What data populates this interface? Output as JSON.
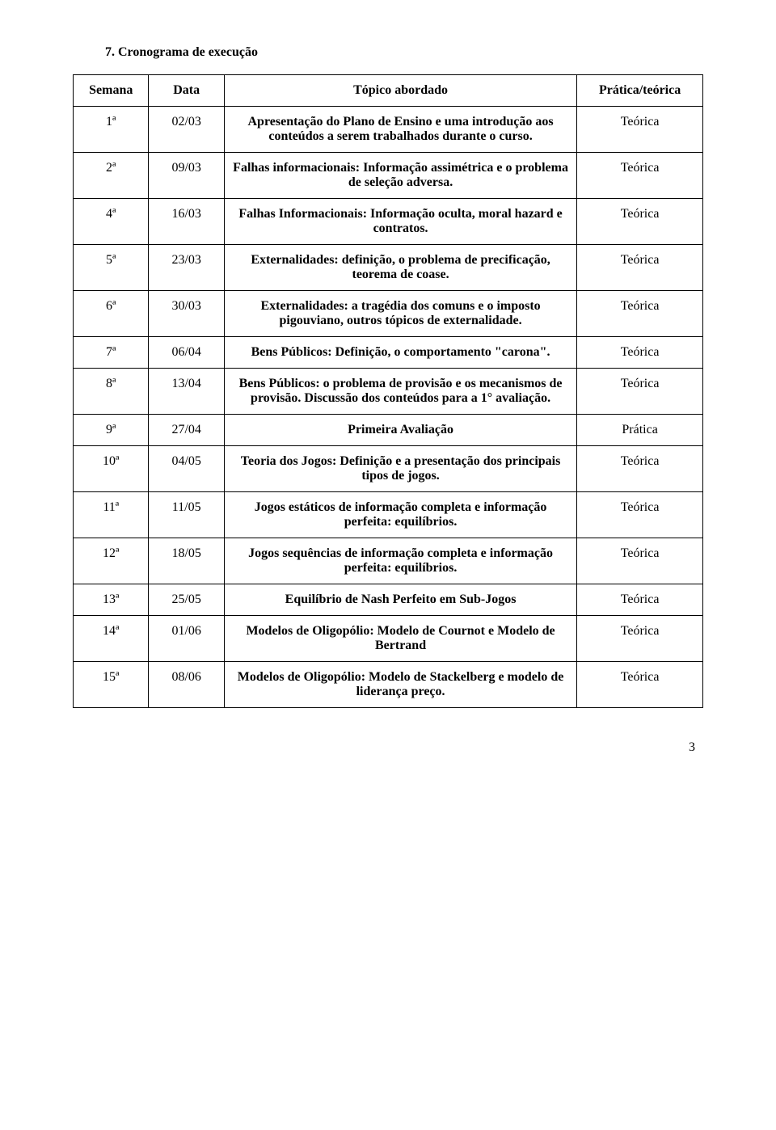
{
  "heading": "7. Cronograma de execução",
  "columns": [
    "Semana",
    "Data",
    "Tópico abordado",
    "Prática/teórica"
  ],
  "rows": [
    {
      "semana": "1ª",
      "data": "02/03",
      "topico": "Apresentação do Plano de Ensino e uma introdução aos conteúdos a serem trabalhados durante o curso.",
      "pt": "Teórica"
    },
    {
      "semana": "2ª",
      "data": "09/03",
      "topico": "Falhas informacionais: Informação assimétrica e o problema de seleção adversa.",
      "pt": "Teórica"
    },
    {
      "semana": "4ª",
      "data": "16/03",
      "topico": "Falhas Informacionais: Informação oculta, moral hazard e contratos.",
      "pt": "Teórica"
    },
    {
      "semana": "5ª",
      "data": "23/03",
      "topico": "Externalidades: definição, o problema de precificação, teorema de coase.",
      "pt": "Teórica"
    },
    {
      "semana": "6ª",
      "data": "30/03",
      "topico": "Externalidades: a tragédia dos comuns e o imposto pigouviano, outros tópicos de externalidade.",
      "pt": "Teórica"
    },
    {
      "semana": "7ª",
      "data": "06/04",
      "topico": "Bens Públicos: Definição, o comportamento \"carona\".",
      "pt": "Teórica"
    },
    {
      "semana": "8ª",
      "data": "13/04",
      "topico": "Bens Públicos:  o problema de provisão e os mecanismos de provisão. Discussão dos conteúdos para a 1° avaliação.",
      "pt": "Teórica"
    },
    {
      "semana": "9ª",
      "data": "27/04",
      "topico": "Primeira Avaliação",
      "pt": "Prática"
    },
    {
      "semana": "10ª",
      "data": "04/05",
      "topico": "Teoria dos Jogos: Definição e a presentação dos principais tipos de jogos.",
      "pt": "Teórica"
    },
    {
      "semana": "11ª",
      "data": "11/05",
      "topico": "Jogos estáticos de informação completa e informação perfeita: equilíbrios.",
      "pt": "Teórica"
    },
    {
      "semana": "12ª",
      "data": "18/05",
      "topico": "Jogos sequências de informação completa e informação perfeita: equilíbrios.",
      "pt": "Teórica"
    },
    {
      "semana": "13ª",
      "data": "25/05",
      "topico": "Equilíbrio de Nash Perfeito em Sub-Jogos",
      "pt": "Teórica"
    },
    {
      "semana": "14ª",
      "data": "01/06",
      "topico": "Modelos de Oligopólio: Modelo de Cournot e Modelo de Bertrand",
      "pt": "Teórica"
    },
    {
      "semana": "15ª",
      "data": "08/06",
      "topico": "Modelos de Oligopólio: Modelo de Stackelberg e modelo de liderança preço.",
      "pt": "Teórica"
    }
  ],
  "page_number": "3"
}
